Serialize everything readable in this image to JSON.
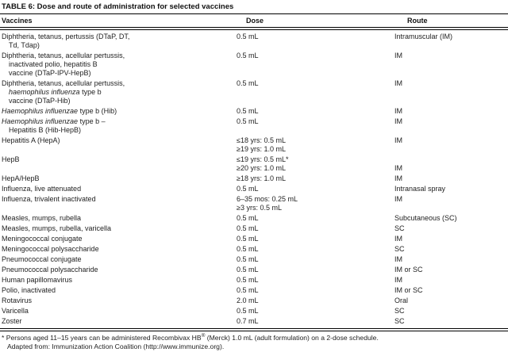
{
  "title": "TABLE 6: Dose and route of administration for selected vaccines",
  "columns": [
    "Vaccines",
    "Dose",
    "Route"
  ],
  "rows": [
    {
      "vaccine": [
        [
          {
            "text": "Diphtheria, tetanus, pertussis (DTaP, DT,",
            "italic": false
          }
        ],
        [
          {
            "text": "Td, Tdap)",
            "italic": false
          }
        ]
      ],
      "dose": [
        "0.5 mL"
      ],
      "route": [
        "Intramuscular (IM)"
      ]
    },
    {
      "vaccine": [
        [
          {
            "text": "Diphtheria, tetanus, acellular pertussis,",
            "italic": false
          }
        ],
        [
          {
            "text": "inactivated polio, hepatitis B",
            "italic": false
          }
        ],
        [
          {
            "text": "vaccine (DTaP-IPV-HepB)",
            "italic": false
          }
        ]
      ],
      "dose": [
        "0.5 mL"
      ],
      "route": [
        "IM"
      ]
    },
    {
      "vaccine": [
        [
          {
            "text": "Diphtheria, tetanus, acellular pertussis,",
            "italic": false
          }
        ],
        [
          {
            "text": "haemophilus influenza",
            "italic": true
          },
          {
            "text": " type b",
            "italic": false
          }
        ],
        [
          {
            "text": "vaccine (DTaP-Hib)",
            "italic": false
          }
        ]
      ],
      "dose": [
        "0.5 mL"
      ],
      "route": [
        "IM"
      ]
    },
    {
      "vaccine": [
        [
          {
            "text": "Haemophilus influenzae",
            "italic": true
          },
          {
            "text": " type b (Hib)",
            "italic": false
          }
        ]
      ],
      "dose": [
        "0.5 mL"
      ],
      "route": [
        "IM"
      ]
    },
    {
      "vaccine": [
        [
          {
            "text": "Haemophilus influenzae",
            "italic": true
          },
          {
            "text": " type b –",
            "italic": false
          }
        ],
        [
          {
            "text": "Hepatitis B (Hib-HepB)",
            "italic": false
          }
        ]
      ],
      "dose": [
        "0.5 mL"
      ],
      "route": [
        "IM"
      ]
    },
    {
      "vaccine": [
        [
          {
            "text": "Hepatitis A (HepA)",
            "italic": false
          }
        ]
      ],
      "dose": [
        "≤18 yrs: 0.5 mL",
        "≥19 yrs: 1.0 mL"
      ],
      "route": [
        "IM"
      ]
    },
    {
      "vaccine": [
        [
          {
            "text": "HepB",
            "italic": false
          }
        ]
      ],
      "dose": [
        "≤19 yrs: 0.5 mL*",
        "≥20 yrs: 1.0 mL"
      ],
      "route": [
        "",
        "IM"
      ]
    },
    {
      "vaccine": [
        [
          {
            "text": "HepA/HepB",
            "italic": false
          }
        ]
      ],
      "dose": [
        "≥18 yrs: 1.0 mL"
      ],
      "route": [
        "IM"
      ]
    },
    {
      "vaccine": [
        [
          {
            "text": "Influenza, live attenuated",
            "italic": false
          }
        ]
      ],
      "dose": [
        "0.5 mL"
      ],
      "route": [
        "Intranasal spray"
      ]
    },
    {
      "vaccine": [
        [
          {
            "text": "Influenza, trivalent inactivated",
            "italic": false
          }
        ]
      ],
      "dose": [
        "6–35 mos: 0.25 mL",
        "≥3 yrs: 0.5 mL"
      ],
      "route": [
        "IM"
      ]
    },
    {
      "vaccine": [
        [
          {
            "text": "Measles, mumps, rubella",
            "italic": false
          }
        ]
      ],
      "dose": [
        "0.5 mL"
      ],
      "route": [
        "Subcutaneous (SC)"
      ]
    },
    {
      "vaccine": [
        [
          {
            "text": "Measles, mumps, rubella, varicella",
            "italic": false
          }
        ]
      ],
      "dose": [
        "0.5 mL"
      ],
      "route": [
        "SC"
      ]
    },
    {
      "vaccine": [
        [
          {
            "text": "Meningococcal conjugate",
            "italic": false
          }
        ]
      ],
      "dose": [
        "0.5 mL"
      ],
      "route": [
        "IM"
      ]
    },
    {
      "vaccine": [
        [
          {
            "text": "Meningococcal polysaccharide",
            "italic": false
          }
        ]
      ],
      "dose": [
        "0.5 mL"
      ],
      "route": [
        "SC"
      ]
    },
    {
      "vaccine": [
        [
          {
            "text": "Pneumococcal conjugate",
            "italic": false
          }
        ]
      ],
      "dose": [
        "0.5 mL"
      ],
      "route": [
        "IM"
      ]
    },
    {
      "vaccine": [
        [
          {
            "text": "Pneumococcal polysaccharide",
            "italic": false
          }
        ]
      ],
      "dose": [
        "0.5 mL"
      ],
      "route": [
        "IM or SC"
      ]
    },
    {
      "vaccine": [
        [
          {
            "text": "Human papillomavirus",
            "italic": false
          }
        ]
      ],
      "dose": [
        "0.5 mL"
      ],
      "route": [
        "IM"
      ]
    },
    {
      "vaccine": [
        [
          {
            "text": "Polio, inactivated",
            "italic": false
          }
        ]
      ],
      "dose": [
        "0.5 mL"
      ],
      "route": [
        "IM or SC"
      ]
    },
    {
      "vaccine": [
        [
          {
            "text": "Rotavirus",
            "italic": false
          }
        ]
      ],
      "dose": [
        "2.0 mL"
      ],
      "route": [
        "Oral"
      ]
    },
    {
      "vaccine": [
        [
          {
            "text": "Varicella",
            "italic": false
          }
        ]
      ],
      "dose": [
        "0.5 mL"
      ],
      "route": [
        "SC"
      ]
    },
    {
      "vaccine": [
        [
          {
            "text": "Zoster",
            "italic": false
          }
        ]
      ],
      "dose": [
        "0.7 mL"
      ],
      "route": [
        "SC"
      ]
    }
  ],
  "footnotes": {
    "note1_pre": "* Persons aged 11–15 years can be administered Recombivax HB",
    "note1_sup": "®",
    "note1_post": " (Merck) 1.0 mL (adult formulation) on a 2-dose schedule.",
    "note2": "Adapted from: Immunization Action Coalition (http://www.immunize.org)."
  },
  "colors": {
    "text": "#222222",
    "rule": "#000000",
    "background": "#ffffff"
  }
}
